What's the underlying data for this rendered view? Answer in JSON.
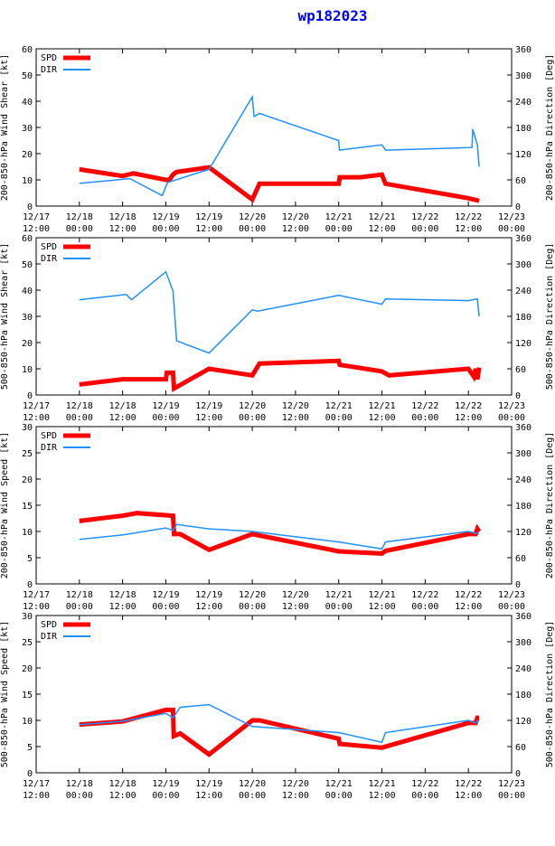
{
  "title": "wp182023",
  "colors": {
    "spd": "#ff0000",
    "dir": "#1e90ff",
    "axis": "#000000",
    "title": "#0000ff"
  },
  "time_axis": {
    "start": "12/17 12:00",
    "end": "12/23 00:00",
    "tick_labels": [
      {
        "t": 0,
        "date": "12/17",
        "time": "12:00"
      },
      {
        "t": 12,
        "date": "12/18",
        "time": "00:00"
      },
      {
        "t": 24,
        "date": "12/18",
        "time": "12:00"
      },
      {
        "t": 36,
        "date": "12/19",
        "time": "00:00"
      },
      {
        "t": 48,
        "date": "12/19",
        "time": "12:00"
      },
      {
        "t": 60,
        "date": "12/20",
        "time": "00:00"
      },
      {
        "t": 72,
        "date": "12/20",
        "time": "12:00"
      },
      {
        "t": 84,
        "date": "12/21",
        "time": "00:00"
      },
      {
        "t": 96,
        "date": "12/21",
        "time": "12:00"
      },
      {
        "t": 108,
        "date": "12/22",
        "time": "00:00"
      },
      {
        "t": 120,
        "date": "12/22",
        "time": "12:00"
      },
      {
        "t": 132,
        "date": "12/23",
        "time": "00:00"
      }
    ]
  },
  "chart_data": [
    {
      "type": "line",
      "ylabel": "200-850-hPa Wind Shear [kt]",
      "y2label": "200-850-hPa Direction [Deg]",
      "ylim": [
        0,
        60
      ],
      "yticks": [
        0,
        10,
        20,
        30,
        40,
        50,
        60
      ],
      "y2lim": [
        0,
        360
      ],
      "y2ticks": [
        0,
        60,
        120,
        180,
        240,
        300,
        360
      ],
      "legend": [
        "SPD",
        "DIR"
      ],
      "series": [
        {
          "name": "SPD",
          "axis": "left",
          "x": [
            12,
            24,
            27,
            36,
            37,
            38,
            39,
            48,
            60,
            62,
            84,
            84.3,
            90,
            96,
            97,
            120,
            123
          ],
          "values": [
            14,
            11.5,
            12.5,
            10,
            10,
            12,
            13,
            14.8,
            2.5,
            8.5,
            8.5,
            11,
            11,
            12,
            8.5,
            3,
            2
          ]
        },
        {
          "name": "DIR",
          "axis": "left-scaled",
          "x": [
            12,
            26,
            35,
            36.5,
            48,
            60,
            60.5,
            62,
            84,
            84.2,
            96,
            97,
            121,
            121.2,
            122.5,
            123
          ],
          "values": [
            52,
            63,
            24,
            54,
            84,
            250,
            205,
            212,
            150,
            128,
            140,
            128,
            134,
            176,
            140,
            90
          ]
        }
      ]
    },
    {
      "type": "line",
      "ylabel": "500-850-hPa Wind Shear [kt]",
      "y2label": "500-850-hPa Direction [Deg]",
      "ylim": [
        0,
        60
      ],
      "yticks": [
        0,
        10,
        20,
        30,
        40,
        50,
        60
      ],
      "y2lim": [
        0,
        360
      ],
      "y2ticks": [
        0,
        60,
        120,
        180,
        240,
        300,
        360
      ],
      "legend": [
        "SPD",
        "DIR"
      ],
      "series": [
        {
          "name": "SPD",
          "axis": "left",
          "x": [
            12,
            24,
            36,
            36.3,
            38,
            38.3,
            48,
            60,
            62,
            84,
            84.3,
            96,
            98,
            120,
            121.5,
            122,
            122.5,
            123
          ],
          "values": [
            4,
            6,
            6,
            8.5,
            8.5,
            2.5,
            10,
            7.5,
            12,
            13,
            11.5,
            9,
            7.5,
            10,
            7,
            10,
            6,
            10.5
          ]
        },
        {
          "name": "DIR",
          "axis": "left-scaled",
          "x": [
            12,
            25,
            26.5,
            36,
            38,
            39,
            48,
            60,
            61.5,
            84,
            96,
            97,
            120,
            122.5,
            123
          ],
          "values": [
            218,
            230,
            218,
            282,
            238,
            124,
            96,
            195,
            192,
            228,
            208,
            220,
            216,
            220,
            180
          ]
        }
      ]
    },
    {
      "type": "line",
      "ylabel": "200-850-hPa Wind Speed [kt]",
      "y2label": "200-850-hPa Direction [Deg]",
      "ylim": [
        0,
        30
      ],
      "yticks": [
        0,
        5,
        10,
        15,
        20,
        25,
        30
      ],
      "y2lim": [
        0,
        360
      ],
      "y2ticks": [
        0,
        60,
        120,
        180,
        240,
        300,
        360
      ],
      "legend": [
        "SPD",
        "DIR"
      ],
      "series": [
        {
          "name": "SPD",
          "axis": "left",
          "x": [
            12,
            24,
            28,
            38,
            38.3,
            40,
            48,
            60,
            84,
            96,
            97,
            120,
            122,
            122.5,
            123
          ],
          "values": [
            12,
            13,
            13.5,
            13,
            9.5,
            9.5,
            6.5,
            9.5,
            6.2,
            5.8,
            6.3,
            9.5,
            9.5,
            10.5,
            10
          ]
        },
        {
          "name": "DIR",
          "axis": "left-scaled",
          "x": [
            12,
            24,
            36,
            38,
            39,
            48,
            60,
            84,
            96,
            97,
            120,
            123
          ],
          "values": [
            102,
            112,
            128,
            122,
            136,
            126,
            120,
            96,
            80,
            96,
            120,
            114
          ]
        }
      ]
    },
    {
      "type": "line",
      "ylabel": "500-850-hPa Wind Speed [kt]",
      "y2label": "500-850-hPa Direction [Deg]",
      "ylim": [
        0,
        30
      ],
      "yticks": [
        0,
        5,
        10,
        15,
        20,
        25,
        30
      ],
      "y2lim": [
        0,
        360
      ],
      "y2ticks": [
        0,
        60,
        120,
        180,
        240,
        300,
        360
      ],
      "legend": [
        "SPD",
        "DIR"
      ],
      "series": [
        {
          "name": "SPD",
          "axis": "left",
          "x": [
            12,
            24,
            36,
            38,
            38.2,
            40,
            48,
            60,
            62,
            84,
            84.3,
            96,
            120,
            122,
            122.5,
            123
          ],
          "values": [
            9.2,
            9.8,
            12,
            12,
            7,
            7.5,
            3.5,
            10,
            10,
            6.5,
            5.5,
            4.8,
            9.5,
            9.5,
            10.5,
            10.5
          ]
        },
        {
          "name": "DIR",
          "axis": "left-scaled",
          "x": [
            12,
            24,
            36,
            38,
            40,
            48,
            60,
            84,
            96,
            97,
            120,
            122,
            123
          ],
          "values": [
            110,
            118,
            136,
            126,
            150,
            156,
            106,
            92,
            70,
            92,
            120,
            114,
            120
          ]
        }
      ]
    }
  ]
}
